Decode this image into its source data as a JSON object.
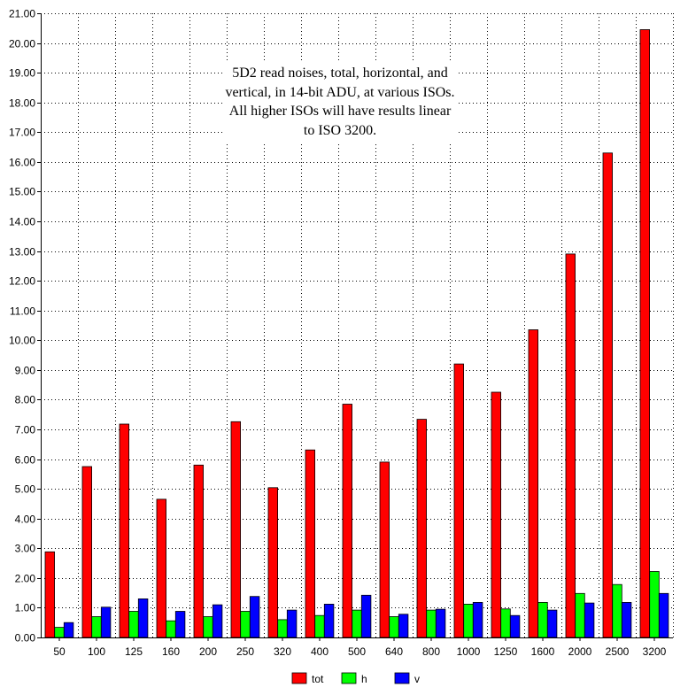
{
  "chart_data": {
    "type": "bar",
    "title": "",
    "xlabel": "",
    "ylabel": "",
    "ylim": [
      0,
      21
    ],
    "y_ticks": [
      "0.00",
      "1.00",
      "2.00",
      "3.00",
      "4.00",
      "5.00",
      "6.00",
      "7.00",
      "8.00",
      "9.00",
      "10.00",
      "11.00",
      "12.00",
      "13.00",
      "14.00",
      "15.00",
      "16.00",
      "17.00",
      "18.00",
      "19.00",
      "20.00",
      "21.00"
    ],
    "categories": [
      "50",
      "100",
      "125",
      "160",
      "200",
      "250",
      "320",
      "400",
      "500",
      "640",
      "800",
      "1000",
      "1250",
      "1600",
      "2000",
      "2500",
      "3200"
    ],
    "series": [
      {
        "name": "tot",
        "color": "#ff0000",
        "values": [
          2.88,
          5.75,
          7.18,
          4.65,
          5.8,
          7.26,
          5.04,
          6.31,
          7.85,
          5.9,
          7.34,
          9.2,
          8.25,
          10.35,
          12.9,
          16.3,
          20.45
        ]
      },
      {
        "name": "h",
        "color": "#00ff00",
        "values": [
          0.34,
          0.7,
          0.88,
          0.56,
          0.7,
          0.88,
          0.6,
          0.74,
          0.92,
          0.7,
          0.92,
          1.12,
          0.96,
          1.18,
          1.48,
          1.78,
          2.22
        ]
      },
      {
        "name": "v",
        "color": "#0000ff",
        "values": [
          0.5,
          1.02,
          1.3,
          0.88,
          1.1,
          1.38,
          0.92,
          1.12,
          1.42,
          0.78,
          0.95,
          1.18,
          0.74,
          0.92,
          1.16,
          1.18,
          1.48
        ]
      }
    ],
    "grid": true,
    "legend_position": "bottom-center",
    "annotation": "5D2 read noises, total, horizontal, and vertical, in 14-bit ADU, at various ISOs.  All higher ISOs will have results linear to ISO 3200."
  }
}
